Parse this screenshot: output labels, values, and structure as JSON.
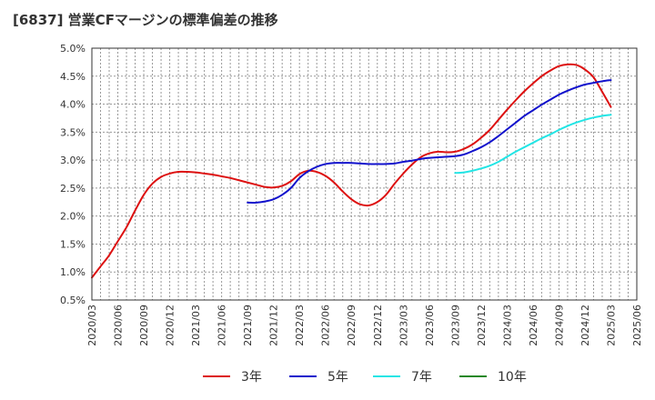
{
  "chart_data": {
    "type": "line",
    "title": "[6837]  営業CFマージンの標準偏差の推移",
    "xlabel": "",
    "ylabel": "",
    "ylim": [
      0.5,
      5.0
    ],
    "y_ticks": [
      0.5,
      1.0,
      1.5,
      2.0,
      2.5,
      3.0,
      3.5,
      4.0,
      4.5,
      5.0
    ],
    "y_tick_labels": [
      "0.5%",
      "1.0%",
      "1.5%",
      "2.0%",
      "2.5%",
      "3.0%",
      "3.5%",
      "4.0%",
      "4.5%",
      "5.0%"
    ],
    "x_ticks": [
      "2020/03",
      "2020/06",
      "2020/09",
      "2020/12",
      "2021/03",
      "2021/06",
      "2021/09",
      "2021/12",
      "2022/03",
      "2022/06",
      "2022/09",
      "2022/12",
      "2023/03",
      "2023/06",
      "2023/09",
      "2023/12",
      "2024/03",
      "2024/06",
      "2024/09",
      "2024/12",
      "2025/03",
      "2025/06"
    ],
    "grid": true,
    "legend_position": "bottom",
    "series": [
      {
        "name": "3年",
        "color": "#dd1111",
        "points": [
          [
            "2020/03",
            0.9
          ],
          [
            "2020/04",
            1.1
          ],
          [
            "2020/05",
            1.3
          ],
          [
            "2020/06",
            1.55
          ],
          [
            "2020/07",
            1.8
          ],
          [
            "2020/08",
            2.1
          ],
          [
            "2020/09",
            2.38
          ],
          [
            "2020/10",
            2.58
          ],
          [
            "2020/11",
            2.7
          ],
          [
            "2020/12",
            2.76
          ],
          [
            "2021/01",
            2.79
          ],
          [
            "2021/02",
            2.79
          ],
          [
            "2021/03",
            2.78
          ],
          [
            "2021/04",
            2.76
          ],
          [
            "2021/05",
            2.74
          ],
          [
            "2021/06",
            2.71
          ],
          [
            "2021/07",
            2.68
          ],
          [
            "2021/08",
            2.64
          ],
          [
            "2021/09",
            2.6
          ],
          [
            "2021/10",
            2.56
          ],
          [
            "2021/11",
            2.52
          ],
          [
            "2021/12",
            2.51
          ],
          [
            "2022/01",
            2.54
          ],
          [
            "2022/02",
            2.62
          ],
          [
            "2022/03",
            2.75
          ],
          [
            "2022/04",
            2.81
          ],
          [
            "2022/05",
            2.79
          ],
          [
            "2022/06",
            2.72
          ],
          [
            "2022/07",
            2.6
          ],
          [
            "2022/08",
            2.44
          ],
          [
            "2022/09",
            2.3
          ],
          [
            "2022/10",
            2.21
          ],
          [
            "2022/11",
            2.19
          ],
          [
            "2022/12",
            2.25
          ],
          [
            "2023/01",
            2.38
          ],
          [
            "2023/02",
            2.58
          ],
          [
            "2023/03",
            2.76
          ],
          [
            "2023/04",
            2.92
          ],
          [
            "2023/05",
            3.05
          ],
          [
            "2023/06",
            3.12
          ],
          [
            "2023/07",
            3.15
          ],
          [
            "2023/08",
            3.14
          ],
          [
            "2023/09",
            3.15
          ],
          [
            "2023/10",
            3.2
          ],
          [
            "2023/11",
            3.28
          ],
          [
            "2023/12",
            3.4
          ],
          [
            "2024/01",
            3.54
          ],
          [
            "2024/02",
            3.72
          ],
          [
            "2024/03",
            3.9
          ],
          [
            "2024/04",
            4.07
          ],
          [
            "2024/05",
            4.23
          ],
          [
            "2024/06",
            4.37
          ],
          [
            "2024/07",
            4.5
          ],
          [
            "2024/08",
            4.6
          ],
          [
            "2024/09",
            4.68
          ],
          [
            "2024/10",
            4.71
          ],
          [
            "2024/11",
            4.7
          ],
          [
            "2024/12",
            4.62
          ],
          [
            "2025/01",
            4.48
          ],
          [
            "2025/02",
            4.22
          ],
          [
            "2025/03",
            3.95
          ]
        ]
      },
      {
        "name": "5年",
        "color": "#1111cc",
        "points": [
          [
            "2021/09",
            2.24
          ],
          [
            "2021/10",
            2.24
          ],
          [
            "2021/11",
            2.26
          ],
          [
            "2021/12",
            2.3
          ],
          [
            "2022/01",
            2.38
          ],
          [
            "2022/02",
            2.5
          ],
          [
            "2022/03",
            2.68
          ],
          [
            "2022/04",
            2.8
          ],
          [
            "2022/05",
            2.88
          ],
          [
            "2022/06",
            2.93
          ],
          [
            "2022/07",
            2.95
          ],
          [
            "2022/08",
            2.95
          ],
          [
            "2022/09",
            2.95
          ],
          [
            "2022/10",
            2.94
          ],
          [
            "2022/11",
            2.93
          ],
          [
            "2022/12",
            2.93
          ],
          [
            "2023/01",
            2.93
          ],
          [
            "2023/02",
            2.94
          ],
          [
            "2023/03",
            2.97
          ],
          [
            "2023/04",
            2.99
          ],
          [
            "2023/05",
            3.02
          ],
          [
            "2023/06",
            3.04
          ],
          [
            "2023/07",
            3.05
          ],
          [
            "2023/08",
            3.06
          ],
          [
            "2023/09",
            3.07
          ],
          [
            "2023/10",
            3.1
          ],
          [
            "2023/11",
            3.16
          ],
          [
            "2023/12",
            3.23
          ],
          [
            "2024/01",
            3.32
          ],
          [
            "2024/02",
            3.43
          ],
          [
            "2024/03",
            3.55
          ],
          [
            "2024/04",
            3.67
          ],
          [
            "2024/05",
            3.79
          ],
          [
            "2024/06",
            3.89
          ],
          [
            "2024/07",
            3.99
          ],
          [
            "2024/08",
            4.08
          ],
          [
            "2024/09",
            4.17
          ],
          [
            "2024/10",
            4.24
          ],
          [
            "2024/11",
            4.3
          ],
          [
            "2024/12",
            4.35
          ],
          [
            "2025/01",
            4.38
          ],
          [
            "2025/02",
            4.41
          ],
          [
            "2025/03",
            4.43
          ]
        ]
      },
      {
        "name": "7年",
        "color": "#22e5e5",
        "points": [
          [
            "2023/09",
            2.77
          ],
          [
            "2023/10",
            2.78
          ],
          [
            "2023/11",
            2.81
          ],
          [
            "2023/12",
            2.85
          ],
          [
            "2024/01",
            2.9
          ],
          [
            "2024/02",
            2.97
          ],
          [
            "2024/03",
            3.06
          ],
          [
            "2024/04",
            3.15
          ],
          [
            "2024/05",
            3.23
          ],
          [
            "2024/06",
            3.31
          ],
          [
            "2024/07",
            3.39
          ],
          [
            "2024/08",
            3.46
          ],
          [
            "2024/09",
            3.54
          ],
          [
            "2024/10",
            3.61
          ],
          [
            "2024/11",
            3.67
          ],
          [
            "2024/12",
            3.72
          ],
          [
            "2025/01",
            3.76
          ],
          [
            "2025/02",
            3.79
          ],
          [
            "2025/03",
            3.81
          ]
        ]
      },
      {
        "name": "10年",
        "color": "#228822",
        "points": []
      }
    ]
  }
}
